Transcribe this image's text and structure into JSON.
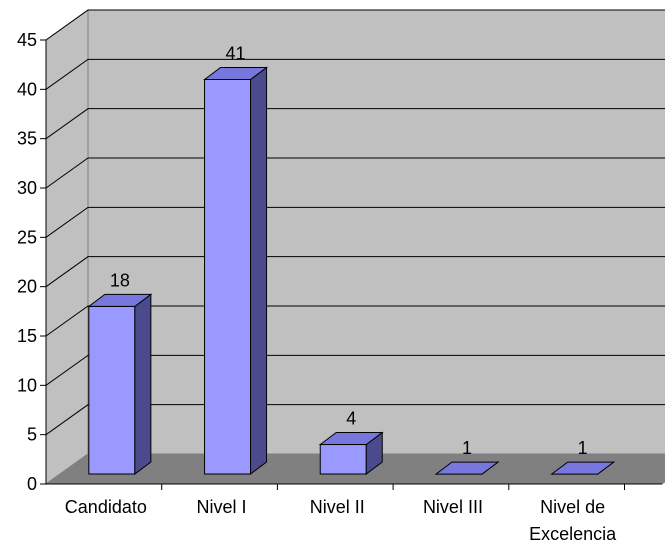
{
  "chart_data": {
    "type": "bar",
    "style": "3d-column",
    "categories": [
      "Candidato",
      "Nivel I",
      "Nivel II",
      "Nivel III",
      "Nivel de Excelencia"
    ],
    "values": [
      18,
      41,
      4,
      1,
      1
    ],
    "data_labels": [
      "18",
      "41",
      "4",
      "1",
      "1"
    ],
    "ylim": [
      0,
      45
    ],
    "y_ticks": [
      0,
      5,
      10,
      15,
      20,
      25,
      30,
      35,
      40,
      45
    ],
    "title": "",
    "xlabel": "",
    "ylabel": "",
    "grid": true,
    "legend": "none",
    "colors": {
      "bar_front": "#9999ff",
      "bar_top": "#7777dd",
      "bar_side": "#4a4a8c",
      "wall": "#c0c0c0",
      "floor": "#808080"
    }
  }
}
